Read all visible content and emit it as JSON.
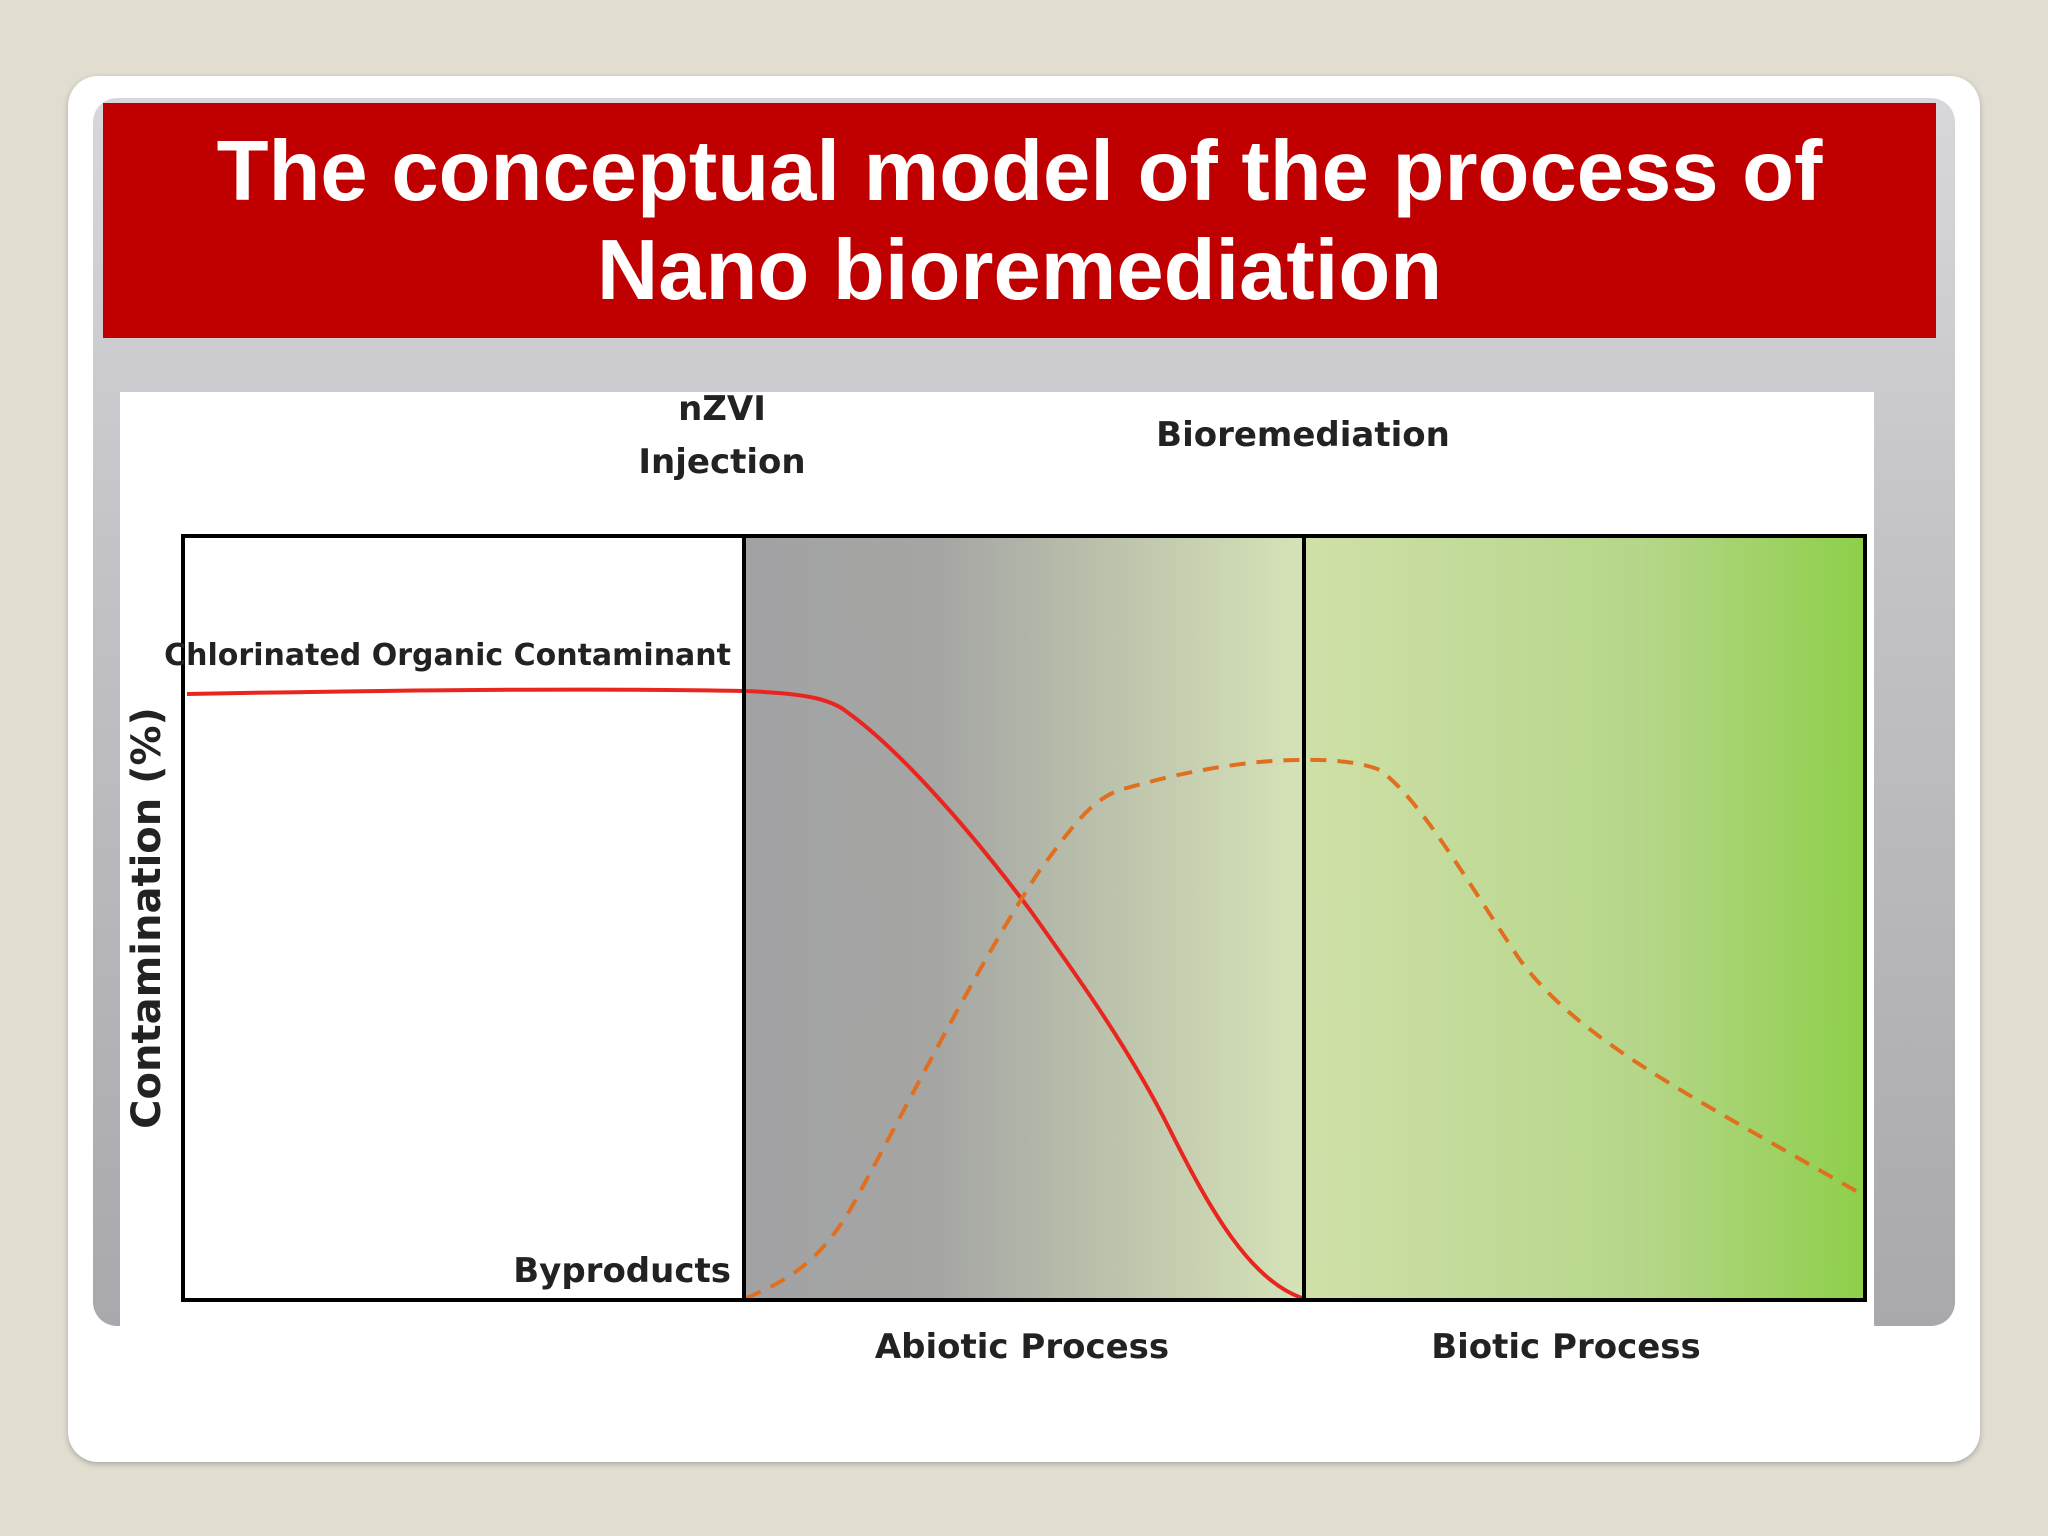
{
  "slide": {
    "title": "The conceptual model of the process of Nano bioremediation"
  },
  "diagram": {
    "y_axis_label": "Contamination (%)",
    "phase_labels": {
      "nzvi_line1": "nZVI",
      "nzvi_line2": "Injection",
      "bioremediation": "Bioremediation"
    },
    "process_labels": {
      "abiotic": "Abiotic Process",
      "biotic": "Biotic Process"
    },
    "series": {
      "contaminant": {
        "name": "Chlorinated Organic Contaminant",
        "line_style": "solid",
        "color": "#e8251f"
      },
      "byproducts": {
        "name": "Byproducts",
        "line_style": "dashed",
        "color": "#e0701f"
      }
    },
    "colors": {
      "title_bar": "#c00000",
      "abiotic_start": "#a2a2a4",
      "abiotic_end": "#d6e3b7",
      "biotic_start": "#cfe0a8",
      "biotic_end": "#8ecf4a"
    }
  }
}
